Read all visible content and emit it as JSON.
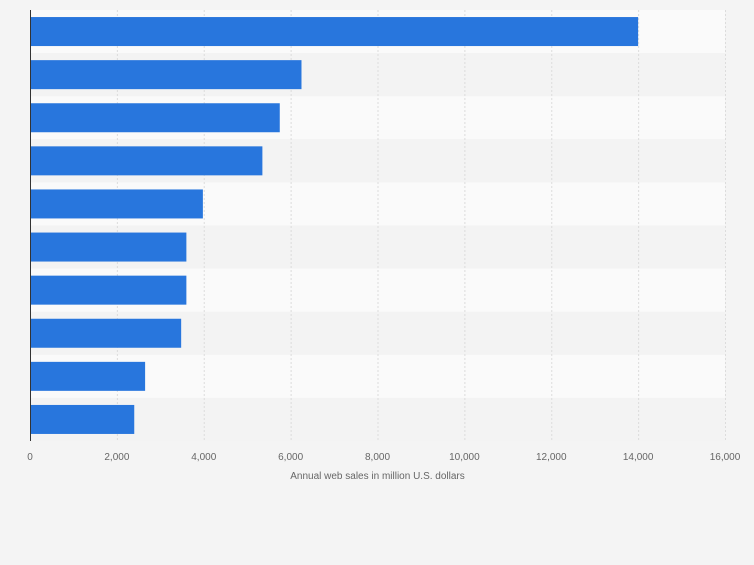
{
  "chart_data": {
    "type": "bar",
    "orientation": "horizontal",
    "categories": [
      "",
      "",
      "",
      "",
      "",
      "",
      "",
      "",
      "",
      ""
    ],
    "values": [
      14000,
      6250,
      5750,
      5350,
      3980,
      3600,
      3600,
      3480,
      2650,
      2400
    ],
    "xlabel": "Annual web sales in million U.S. dollars",
    "ylabel": "",
    "xlim": [
      0,
      16000
    ],
    "ticks": [
      0,
      2000,
      4000,
      6000,
      8000,
      10000,
      12000,
      14000,
      16000
    ],
    "tick_labels": [
      "0",
      "2,000",
      "4,000",
      "6,000",
      "8,000",
      "10,000",
      "12,000",
      "14,000",
      "16,000"
    ],
    "grid": true,
    "colors": {
      "bar": "#2876dd",
      "band_light": "#fafafa",
      "band_dark": "#f3f3f3",
      "gridline": "#dcdcdc",
      "axis": "#333333",
      "tick_text": "#666666",
      "background": "#f4f4f4"
    }
  }
}
